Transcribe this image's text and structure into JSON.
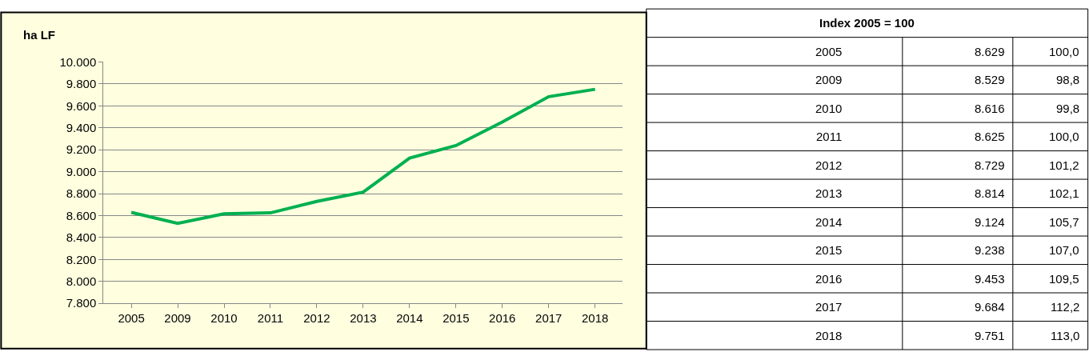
{
  "chart_data": {
    "type": "line",
    "ylabel": "ha LF",
    "categories": [
      "2005",
      "2009",
      "2010",
      "2011",
      "2012",
      "2013",
      "2014",
      "2015",
      "2016",
      "2017",
      "2018"
    ],
    "series": [
      {
        "color": "#00b050",
        "values": [
          8629,
          8529,
          8616,
          8625,
          8729,
          8814,
          9124,
          9238,
          9453,
          9684,
          9751
        ]
      }
    ],
    "ylim": [
      7800,
      10000
    ],
    "yticks": [
      {
        "value": 7800,
        "label": "7.800"
      },
      {
        "value": 8000,
        "label": "8.000"
      },
      {
        "value": 8200,
        "label": "8.200"
      },
      {
        "value": 8400,
        "label": "8.400"
      },
      {
        "value": 8600,
        "label": "8.600"
      },
      {
        "value": 8800,
        "label": "8.800"
      },
      {
        "value": 9000,
        "label": "9.000"
      },
      {
        "value": 9200,
        "label": "9.200"
      },
      {
        "value": 9400,
        "label": "9.400"
      },
      {
        "value": 9600,
        "label": "9.600"
      },
      {
        "value": 9800,
        "label": "9.800"
      },
      {
        "value": 10000,
        "label": "10.000"
      }
    ],
    "grid": "y",
    "marker": "none",
    "line_style": "solid",
    "annotations": [
      "Index 2005 = 100",
      "8.629",
      "100,0",
      "8.529",
      "98,8",
      "8.616",
      "99,8",
      "8.625",
      "100,0",
      "8.729",
      "101,2",
      "8.814",
      "102,1",
      "9.124",
      "105,7",
      "9.238",
      "107,0",
      "9.453",
      "109,5",
      "9.684",
      "112,2",
      "9.751",
      "113,0"
    ]
  }
}
